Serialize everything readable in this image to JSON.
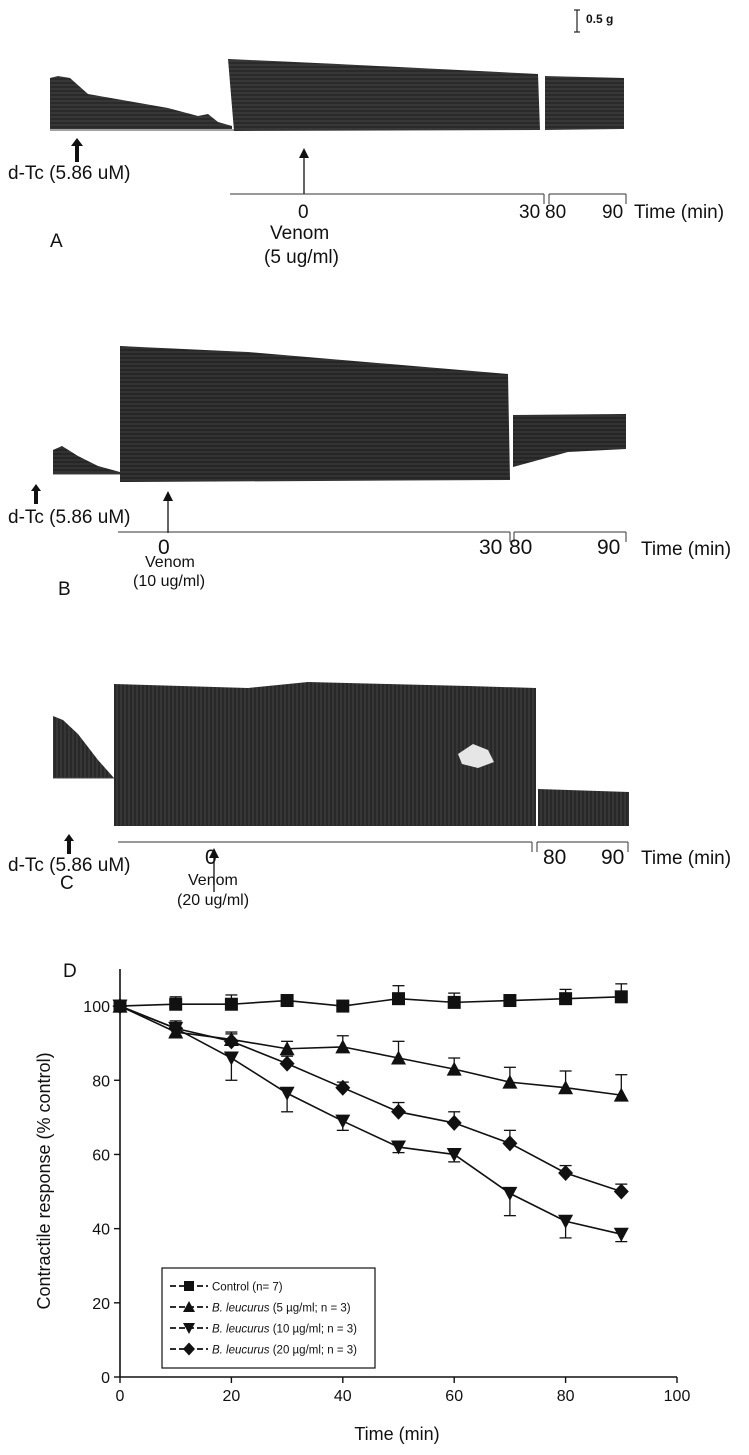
{
  "scale_bar": {
    "label": "0.5 g"
  },
  "traces": [
    {
      "id": "A",
      "letter": "A",
      "dtc_label": "d-Tc (5.86 uM)",
      "venom_word": "Venom",
      "venom_dose": "(5 ug/ml)",
      "time_ticks": [
        "0",
        "30",
        "80",
        "90"
      ],
      "time_label": "Time (min)"
    },
    {
      "id": "B",
      "letter": "B",
      "dtc_label": "d-Tc (5.86 uM)",
      "venom_word": "Venom",
      "venom_dose": "(10 ug/ml)",
      "time_ticks": [
        "0",
        "30",
        "80",
        "90"
      ],
      "time_label": "Time (min)"
    },
    {
      "id": "C",
      "letter": "C",
      "dtc_label": "d-Tc (5.86 uM)",
      "venom_word": "Venom",
      "venom_dose": "(20 ug/ml)",
      "time_ticks": [
        "0",
        "80",
        "90"
      ],
      "time_label": "Time (min)"
    }
  ],
  "chart_data": {
    "type": "line",
    "panel_label": "D",
    "xlabel": "Time (min)",
    "ylabel": "Contractile response (% control)",
    "xlim": [
      0,
      100
    ],
    "ylim": [
      0,
      110
    ],
    "xticks": [
      0,
      20,
      40,
      60,
      80,
      100
    ],
    "yticks": [
      0,
      20,
      40,
      60,
      80,
      100
    ],
    "x": [
      0,
      10,
      20,
      30,
      40,
      50,
      60,
      70,
      80,
      90
    ],
    "grid": false,
    "legend_position": "bottom-left",
    "series": [
      {
        "name": "Control (n= 7)",
        "legend_species": "",
        "legend_rest": "Control (n= 7)",
        "marker": "square",
        "values": [
          100,
          100.5,
          100.5,
          101.5,
          100,
          102,
          101,
          101.5,
          102,
          102.5
        ],
        "errors": [
          0,
          2,
          2.5,
          1.5,
          1.5,
          3.5,
          2.5,
          1.5,
          2.5,
          3.5
        ]
      },
      {
        "name": "B. leucurus (5 µg/ml; n = 3)",
        "legend_species": "B. leucurus",
        "legend_rest": " (5 µg/ml; n = 3)",
        "marker": "triangle-up",
        "values": [
          100,
          93,
          91,
          88.5,
          89,
          86,
          83,
          79.5,
          78,
          76
        ],
        "errors": [
          0,
          2,
          2,
          2,
          3,
          4.5,
          3,
          4,
          4.5,
          5.5
        ]
      },
      {
        "name": "B. leucurus (10 µg/ml; n = 3)",
        "legend_species": "B. leucurus",
        "legend_rest": " (10 µg/ml; n = 3)",
        "marker": "triangle-down",
        "values": [
          100,
          94,
          86,
          76.5,
          69,
          62,
          60,
          49.5,
          42,
          38.5
        ],
        "errors": [
          0,
          2,
          6,
          5,
          2.5,
          1.5,
          2,
          6,
          4.5,
          2
        ]
      },
      {
        "name": "B. leucurus (20 µg/ml; n = 3)",
        "legend_species": "B. leucurus",
        "legend_rest": " (20 µg/ml; n = 3)",
        "marker": "diamond",
        "values": [
          100,
          94,
          90.5,
          84.5,
          78,
          71.5,
          68.5,
          63,
          55,
          50
        ],
        "errors": [
          0,
          2,
          2,
          2,
          1.5,
          2.5,
          3,
          3.5,
          2,
          2
        ]
      }
    ]
  }
}
